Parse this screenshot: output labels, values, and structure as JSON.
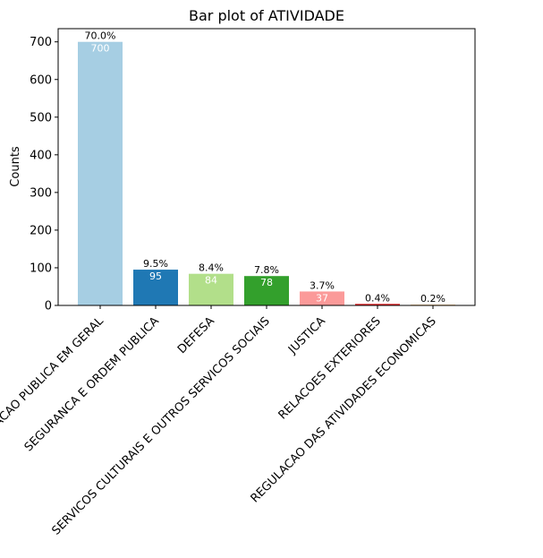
{
  "chart_data": {
    "type": "bar",
    "title": "Bar plot of ATIVIDADE",
    "xlabel": "",
    "ylabel": "Counts",
    "ylim": [
      0,
      735
    ],
    "yticks": [
      0,
      100,
      200,
      300,
      400,
      500,
      600,
      700
    ],
    "grid": false,
    "categories": [
      "ADMINISTRACAO PUBLICA EM GERAL",
      "SEGURANCA E ORDEM PUBLICA",
      "DEFESA",
      "SERVICOS CULTURAIS E OUTROS SERVICOS SOCIAIS",
      "JUSTICA",
      "RELACOES EXTERIORES",
      "REGULACAO DAS ATIVIDADES ECONOMICAS"
    ],
    "values": [
      700,
      95,
      84,
      78,
      37,
      4,
      2
    ],
    "value_labels": [
      "700",
      "95",
      "84",
      "78",
      "37",
      "",
      ""
    ],
    "percent_labels": [
      "70.0%",
      "9.5%",
      "8.4%",
      "7.8%",
      "3.7%",
      "0.4%",
      "0.2%"
    ],
    "colors": [
      "#a6cee3",
      "#1f78b4",
      "#b2df8a",
      "#33a02c",
      "#fb9a99",
      "#e31a1c",
      "#fdbf6f"
    ]
  }
}
